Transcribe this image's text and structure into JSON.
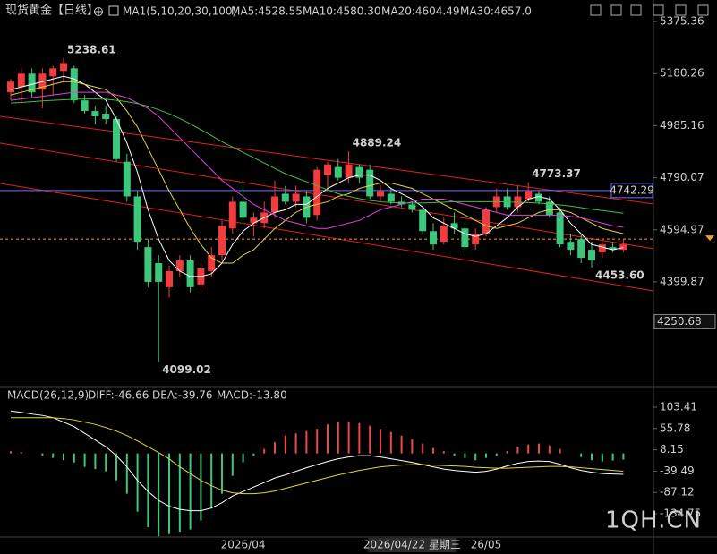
{
  "chart_data": [
    {
      "type": "candlestick",
      "title": "现货黄金【日线】",
      "indicator": "MA1(5,10,20,30,100)",
      "categories": [
        null,
        null,
        null,
        null,
        null,
        null,
        null,
        null,
        null,
        null,
        null,
        null,
        null,
        null,
        null,
        null,
        null,
        null,
        null,
        null,
        null,
        null,
        "2026/04",
        null,
        null,
        null,
        null,
        null,
        null,
        null,
        null,
        null,
        null,
        null,
        null,
        null,
        null,
        null,
        "2026/04/22 星期三",
        null,
        null,
        null,
        null,
        null,
        null,
        "26/05",
        null,
        null,
        null,
        null,
        null,
        null,
        null,
        null,
        null,
        null,
        null,
        null,
        null
      ],
      "crosshair_index": 38,
      "open": [
        5110,
        5130,
        5180,
        5120,
        5170,
        5190,
        5200,
        5080,
        5040,
        5030,
        5010,
        4850,
        4720,
        4530,
        4470,
        4380,
        4440,
        4480,
        4390,
        4440,
        4500,
        4600,
        4700,
        4620,
        4620,
        4660,
        4730,
        4700,
        4720,
        4650,
        4800,
        4830,
        4790,
        4830,
        4820,
        4720,
        4730,
        4700,
        4690,
        4670,
        4590,
        4550,
        4620,
        4600,
        4540,
        4580,
        4680,
        4720,
        4680,
        4710,
        4730,
        4700,
        4660,
        4550,
        4560,
        4520,
        4510,
        4530,
        4520
      ],
      "high": [
        5160,
        5200,
        5200,
        5200,
        5210,
        5238.61,
        5210,
        5100,
        5060,
        5060,
        5020,
        4880,
        4740,
        4560,
        4500,
        4460,
        4500,
        4500,
        4470,
        4530,
        4630,
        4720,
        4780,
        4660,
        4700,
        4780,
        4760,
        4760,
        4740,
        4830,
        4850,
        4860,
        4889.24,
        4840,
        4840,
        4760,
        4750,
        4720,
        4700,
        4680,
        4620,
        4640,
        4660,
        4620,
        4600,
        4680,
        4750,
        4750,
        4760,
        4773.37,
        4740,
        4720,
        4680,
        4580,
        4580,
        4550,
        4560,
        4550,
        4560
      ],
      "low": [
        5080,
        5070,
        5090,
        5050,
        5100,
        5150,
        5070,
        5030,
        4990,
        4990,
        4850,
        4700,
        4520,
        4380,
        4099.02,
        4340,
        4420,
        4360,
        4370,
        4420,
        4480,
        4580,
        4620,
        4570,
        4600,
        4640,
        4690,
        4680,
        4620,
        4630,
        4740,
        4780,
        4770,
        4770,
        4710,
        4700,
        4690,
        4680,
        4660,
        4580,
        4520,
        4540,
        4580,
        4510,
        4520,
        4570,
        4660,
        4670,
        4660,
        4700,
        4690,
        4640,
        4530,
        4500,
        4470,
        4453.6,
        4490,
        4510,
        4510
      ],
      "close": [
        5150,
        5180,
        5110,
        5180,
        5200,
        5220,
        5080,
        5040,
        5020,
        5010,
        4860,
        4720,
        4550,
        4400,
        4400,
        4440,
        4480,
        4380,
        4450,
        4500,
        4610,
        4700,
        4640,
        4640,
        4660,
        4720,
        4700,
        4730,
        4640,
        4820,
        4840,
        4790,
        4840,
        4790,
        4720,
        4740,
        4700,
        4690,
        4670,
        4590,
        4540,
        4610,
        4600,
        4530,
        4580,
        4670,
        4720,
        4680,
        4720,
        4740,
        4700,
        4650,
        4540,
        4520,
        4490,
        4480,
        4540,
        4520,
        4540
      ],
      "up_color": "#f03c3c",
      "down_color": "#3cc87c",
      "ylim": [
        4014,
        5456
      ],
      "yticks": [
        5375.36,
        5180.26,
        4985.16,
        4790.07,
        4594.97,
        4399.87
      ],
      "series": [
        {
          "name": "MA5:4528.55",
          "color": "#ffffff",
          "values": [
            5120,
            5130,
            5140,
            5150,
            5160,
            5170,
            5160,
            5140,
            5110,
            5080,
            5010,
            4920,
            4810,
            4670,
            4560,
            4480,
            4440,
            4420,
            4420,
            4430,
            4470,
            4540,
            4590,
            4620,
            4640,
            4660,
            4670,
            4690,
            4690,
            4720,
            4750,
            4770,
            4790,
            4800,
            4800,
            4780,
            4750,
            4730,
            4710,
            4680,
            4640,
            4620,
            4600,
            4580,
            4570,
            4580,
            4610,
            4640,
            4680,
            4710,
            4720,
            4710,
            4670,
            4620,
            4580,
            4540,
            4530,
            4520,
            4528.55
          ]
        },
        {
          "name": "MA10:4580.30",
          "color": "#e6d23c",
          "values": [
            5100,
            5110,
            5120,
            5130,
            5140,
            5150,
            5150,
            5140,
            5130,
            5120,
            5090,
            5040,
            4980,
            4900,
            4820,
            4740,
            4670,
            4600,
            4540,
            4490,
            4470,
            4470,
            4500,
            4520,
            4560,
            4600,
            4630,
            4660,
            4680,
            4690,
            4700,
            4720,
            4730,
            4750,
            4760,
            4770,
            4770,
            4760,
            4750,
            4730,
            4710,
            4690,
            4670,
            4650,
            4630,
            4610,
            4600,
            4610,
            4620,
            4640,
            4660,
            4670,
            4670,
            4660,
            4640,
            4620,
            4600,
            4590,
            4580.3
          ]
        },
        {
          "name": "MA20:4604.49",
          "color": "#e040e0",
          "values": [
            5080,
            5085,
            5090,
            5095,
            5100,
            5105,
            5110,
            5110,
            5110,
            5110,
            5100,
            5090,
            5070,
            5050,
            5020,
            4980,
            4940,
            4900,
            4860,
            4820,
            4780,
            4750,
            4720,
            4690,
            4670,
            4650,
            4630,
            4620,
            4610,
            4600,
            4600,
            4610,
            4620,
            4630,
            4650,
            4670,
            4680,
            4690,
            4700,
            4710,
            4710,
            4710,
            4700,
            4690,
            4680,
            4670,
            4660,
            4650,
            4650,
            4650,
            4650,
            4650,
            4650,
            4645,
            4640,
            4630,
            4620,
            4610,
            4604.49
          ]
        },
        {
          "name": "MA30:4657.0",
          "color": "#40c040",
          "values": [
            5070,
            5072,
            5075,
            5078,
            5080,
            5082,
            5084,
            5085,
            5085,
            5084,
            5080,
            5075,
            5068,
            5058,
            5045,
            5030,
            5012,
            4992,
            4970,
            4948,
            4925,
            4905,
            4885,
            4865,
            4845,
            4825,
            4805,
            4790,
            4775,
            4760,
            4745,
            4730,
            4720,
            4712,
            4705,
            4700,
            4697,
            4695,
            4695,
            4695,
            4697,
            4698,
            4700,
            4700,
            4700,
            4700,
            4700,
            4699,
            4698,
            4697,
            4695,
            4692,
            4688,
            4684,
            4678,
            4672,
            4667,
            4662,
            4657
          ]
        }
      ],
      "annotations": [
        {
          "value": 5238.61,
          "label": "5238.61"
        },
        {
          "value": 4889.24,
          "label": "4889.24"
        },
        {
          "value": 4773.37,
          "label": "4773.37"
        },
        {
          "value": 4099.02,
          "label": "4099.02"
        },
        {
          "value": 4453.6,
          "label": "4453.60"
        }
      ],
      "trendlines": [
        {
          "start": 5020,
          "end": 4692,
          "color": "#e02020"
        },
        {
          "start": 4920,
          "end": 4524,
          "color": "#e02020"
        },
        {
          "start": 4769,
          "end": 4366,
          "color": "#e02020"
        }
      ],
      "hline": {
        "value": 4742.29,
        "color": "#6f6fff"
      },
      "last_price": {
        "value": 4560,
        "color": "#f0a020"
      },
      "price_box": 4250.68
    },
    {
      "type": "macd",
      "title": "MACD(26,12,9)",
      "ylim": [
        -186.75,
        121.4
      ],
      "yticks": [
        103.41,
        55.78,
        8.15,
        -39.49,
        -87.12,
        -134.75
      ],
      "series": [
        {
          "name": "DIFF:-46.66",
          "color": "#ffffff",
          "values": [
            95,
            92,
            88,
            85,
            80,
            70,
            60,
            45,
            30,
            15,
            -5,
            -30,
            -60,
            -85,
            -105,
            -118,
            -125,
            -128,
            -128,
            -122,
            -110,
            -95,
            -85,
            -75,
            -65,
            -55,
            -48,
            -40,
            -32,
            -25,
            -18,
            -12,
            -8,
            -5,
            -5,
            -8,
            -12,
            -16,
            -20,
            -25,
            -30,
            -35,
            -38,
            -40,
            -42,
            -40,
            -35,
            -28,
            -22,
            -18,
            -17,
            -18,
            -24,
            -32,
            -38,
            -42,
            -45,
            -46,
            -46.66
          ]
        },
        {
          "name": "DEA:-39.76",
          "color": "#e6d23c",
          "values": [
            80,
            80,
            80,
            80,
            80,
            78,
            75,
            70,
            65,
            58,
            50,
            40,
            28,
            15,
            2,
            -12,
            -30,
            -45,
            -60,
            -72,
            -82,
            -88,
            -90,
            -90,
            -88,
            -84,
            -78,
            -72,
            -66,
            -60,
            -54,
            -48,
            -43,
            -38,
            -34,
            -30,
            -28,
            -26,
            -25,
            -25,
            -26,
            -27,
            -28,
            -29,
            -31,
            -32,
            -33,
            -33,
            -32,
            -31,
            -30,
            -29,
            -29,
            -30,
            -32,
            -34,
            -36,
            -38,
            -39.76
          ]
        }
      ],
      "histogram": {
        "name": "MACD:-13.80",
        "color": "#d040d0",
        "up_color": "#f04848",
        "down_color": "#3cc87c",
        "values": [
          5,
          3,
          0,
          -5,
          -10,
          -15,
          -20,
          -30,
          -35,
          -40,
          -60,
          -90,
          -130,
          -165,
          -185,
          -180,
          -175,
          -170,
          -150,
          -120,
          -90,
          -50,
          -20,
          -5,
          10,
          25,
          40,
          45,
          50,
          55,
          65,
          70,
          70,
          68,
          62,
          55,
          48,
          40,
          32,
          22,
          12,
          5,
          -5,
          -10,
          -15,
          -10,
          -5,
          5,
          15,
          20,
          22,
          18,
          10,
          0,
          -8,
          -15,
          -18,
          -16,
          -13.8
        ]
      }
    }
  ],
  "watermark": "1QH.CN"
}
